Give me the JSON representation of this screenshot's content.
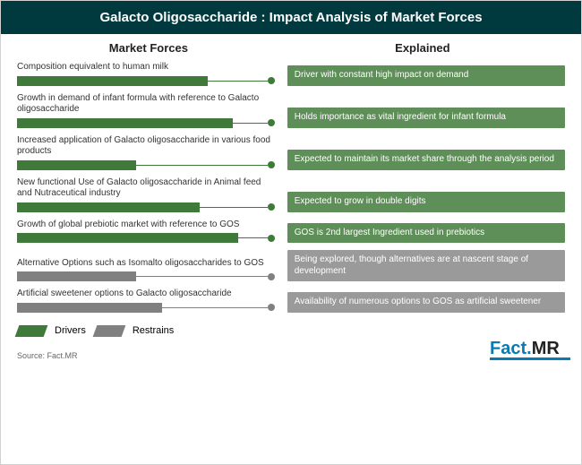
{
  "title": "Galacto Oligosaccharide : Impact Analysis of Market Forces",
  "columns": {
    "left": "Market Forces",
    "right": "Explained"
  },
  "colors": {
    "driver": "#3f7a3a",
    "restrain": "#808080",
    "header_bg": "#003a3f",
    "box_driver": "#5f8f58",
    "box_restrain": "#9a9a9a"
  },
  "rows": [
    {
      "label": "Composition equivalent to human milk",
      "bar_pct": 75,
      "kind": "driver",
      "explain": "Driver with constant high impact on demand"
    },
    {
      "label": "Growth in demand of infant formula with reference to Galacto oligosaccharide",
      "bar_pct": 85,
      "kind": "driver",
      "explain": "Holds importance as vital ingredient for infant formula"
    },
    {
      "label": "Increased application of Galacto oligosaccharide in various food products",
      "bar_pct": 47,
      "kind": "driver",
      "explain": "Expected to maintain its market share through the analysis period"
    },
    {
      "label": "New functional Use of Galacto oligosaccharide in Animal feed and Nutraceutical industry",
      "bar_pct": 72,
      "kind": "driver",
      "explain": "Expected to grow in double digits"
    },
    {
      "label": "Growth of global prebiotic market with reference to GOS",
      "bar_pct": 87,
      "kind": "driver",
      "explain": "GOS is 2nd largest Ingredient used in prebiotics"
    },
    {
      "label": "Alternative Options such as Isomalto oligosaccharides to GOS",
      "bar_pct": 47,
      "kind": "restrain",
      "explain": "Being explored, though alternatives are at nascent stage of development"
    },
    {
      "label": "Artificial sweetener options to Galacto oligosaccharide",
      "bar_pct": 57,
      "kind": "restrain",
      "explain": "Availability of numerous options to GOS as artificial sweetener"
    }
  ],
  "legend": {
    "drivers": "Drivers",
    "restrains": "Restrains"
  },
  "footer": {
    "source": "Source: Fact.MR",
    "logo_fact": "Fact.",
    "logo_mr": "MR"
  }
}
